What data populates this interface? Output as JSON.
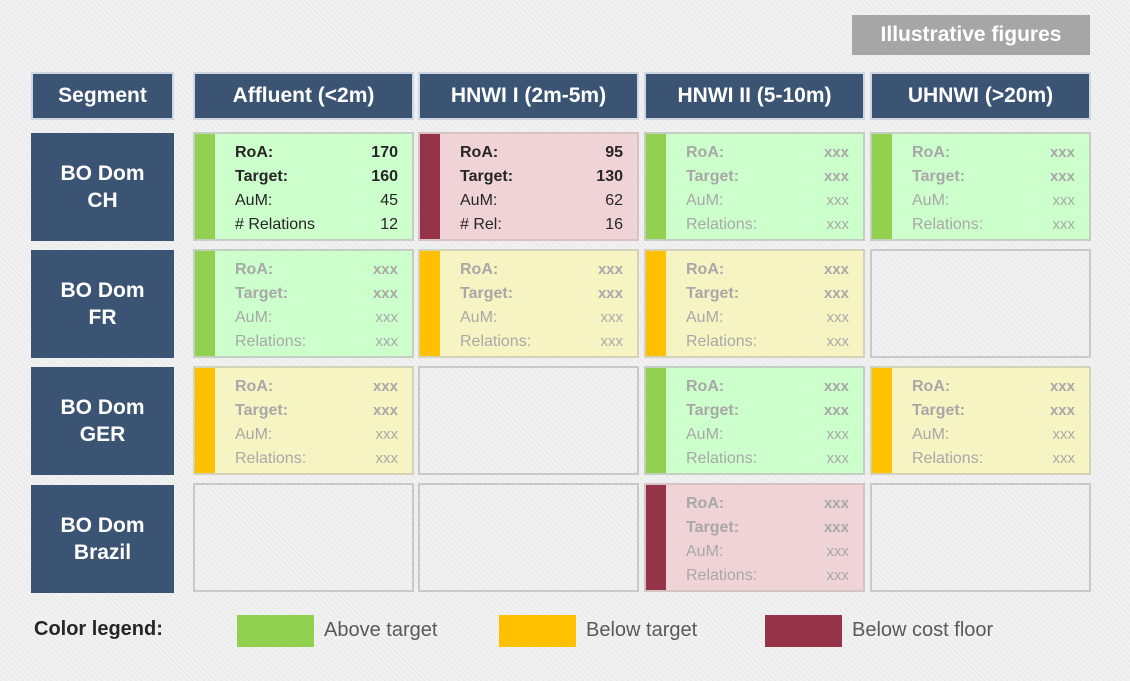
{
  "badge": "Illustrative figures",
  "header": {
    "segment": "Segment",
    "columns": [
      "Affluent (<2m)",
      "HNWI I (2m-5m)",
      "HNWI II (5-10m)",
      "UHNWI (>20m)"
    ]
  },
  "rows": [
    {
      "line1": "BO Dom",
      "line2": "CH"
    },
    {
      "line1": "BO Dom",
      "line2": "FR"
    },
    {
      "line1": "BO Dom",
      "line2": "GER"
    },
    {
      "line1": "BO Dom",
      "line2": "Brazil"
    }
  ],
  "colors": {
    "above_target": "#92d050",
    "below_target": "#ffc000",
    "below_cost_floor": "#953448",
    "header_bg": "#3b5474"
  },
  "cells": {
    "r0c0": {
      "status": "above_target",
      "roa_label": "RoA:",
      "roa": "170",
      "target_label": "Target:",
      "target": "160",
      "aum_label": "AuM:",
      "aum": "45",
      "rel_label": "# Relations",
      "rel": "12"
    },
    "r0c1": {
      "status": "below_cost_floor",
      "roa_label": "RoA:",
      "roa": "95",
      "target_label": "Target:",
      "target": "130",
      "aum_label": "AuM:",
      "aum": "62",
      "rel_label": "# Rel:",
      "rel": "16"
    },
    "r0c2": {
      "status": "above_target",
      "roa_label": "RoA:",
      "roa": "xxx",
      "target_label": "Target:",
      "target": "xxx",
      "aum_label": "AuM:",
      "aum": "xxx",
      "rel_label": "Relations:",
      "rel": "xxx"
    },
    "r0c3": {
      "status": "above_target",
      "roa_label": "RoA:",
      "roa": "xxx",
      "target_label": "Target:",
      "target": "xxx",
      "aum_label": "AuM:",
      "aum": "xxx",
      "rel_label": "Relations:",
      "rel": "xxx"
    },
    "r1c0": {
      "status": "above_target",
      "roa_label": "RoA:",
      "roa": "xxx",
      "target_label": "Target:",
      "target": "xxx",
      "aum_label": "AuM:",
      "aum": "xxx",
      "rel_label": "Relations:",
      "rel": "xxx"
    },
    "r1c1": {
      "status": "below_target",
      "roa_label": "RoA:",
      "roa": "xxx",
      "target_label": "Target:",
      "target": "xxx",
      "aum_label": "AuM:",
      "aum": "xxx",
      "rel_label": "Relations:",
      "rel": "xxx"
    },
    "r1c2": {
      "status": "below_target",
      "roa_label": "RoA:",
      "roa": "xxx",
      "target_label": "Target:",
      "target": "xxx",
      "aum_label": "AuM:",
      "aum": "xxx",
      "rel_label": "Relations:",
      "rel": "xxx"
    },
    "r2c0": {
      "status": "below_target",
      "roa_label": "RoA:",
      "roa": "xxx",
      "target_label": "Target:",
      "target": "xxx",
      "aum_label": "AuM:",
      "aum": "xxx",
      "rel_label": "Relations:",
      "rel": "xxx"
    },
    "r2c2": {
      "status": "above_target",
      "roa_label": "RoA:",
      "roa": "xxx",
      "target_label": "Target:",
      "target": "xxx",
      "aum_label": "AuM:",
      "aum": "xxx",
      "rel_label": "Relations:",
      "rel": "xxx"
    },
    "r2c3": {
      "status": "below_target",
      "roa_label": "RoA:",
      "roa": "xxx",
      "target_label": "Target:",
      "target": "xxx",
      "aum_label": "AuM:",
      "aum": "xxx",
      "rel_label": "Relations:",
      "rel": "xxx"
    },
    "r3c2": {
      "status": "below_cost_floor",
      "roa_label": "RoA:",
      "roa": "xxx",
      "target_label": "Target:",
      "target": "xxx",
      "aum_label": "AuM:",
      "aum": "xxx",
      "rel_label": "Relations:",
      "rel": "xxx"
    }
  },
  "legend": {
    "title": "Color legend:",
    "above": "Above target",
    "below": "Below target",
    "floor": "Below cost floor"
  }
}
